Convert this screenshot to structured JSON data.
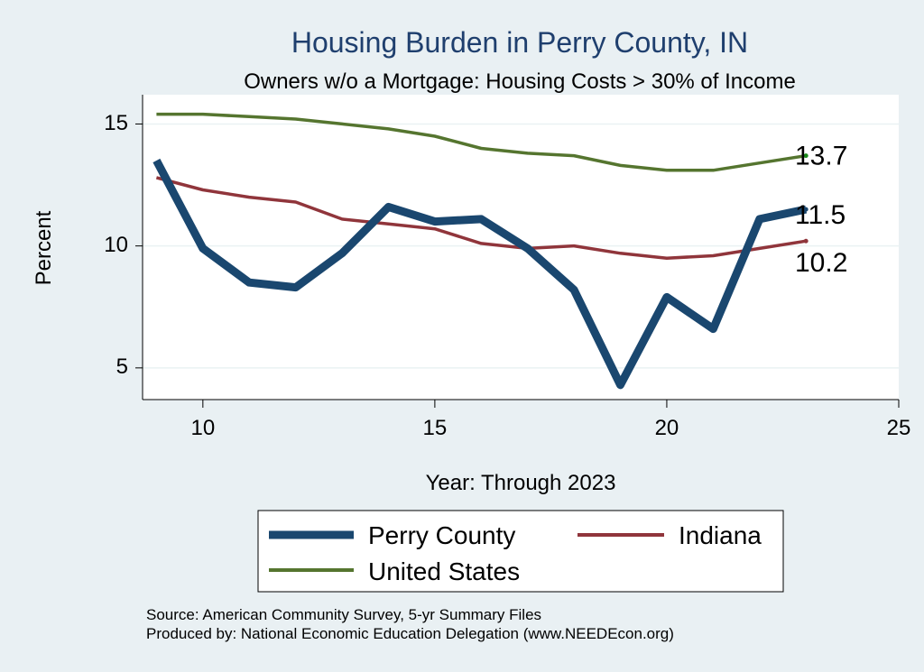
{
  "chart_data": {
    "type": "line",
    "title": "Housing Burden in Perry County, IN",
    "subtitle": "Owners w/o a Mortgage: Housing Costs > 30% of Income",
    "xlabel": "Year: Through 2023",
    "ylabel": "Percent",
    "xlim": [
      8.7,
      25
    ],
    "ylim": [
      3.7,
      16.2
    ],
    "xticks": [
      10,
      15,
      20,
      25
    ],
    "yticks": [
      5,
      10,
      15
    ],
    "grid": true,
    "x": [
      9,
      10,
      11,
      12,
      13,
      14,
      15,
      16,
      17,
      18,
      19,
      20,
      21,
      22,
      23
    ],
    "series": [
      {
        "name": "Perry County",
        "color": "#1a476f",
        "values": [
          13.5,
          9.9,
          8.5,
          8.3,
          9.7,
          11.6,
          11.0,
          11.1,
          9.9,
          8.2,
          4.3,
          7.9,
          6.6,
          11.1,
          11.5
        ],
        "end_label": "11.5"
      },
      {
        "name": "Indiana",
        "color": "#90353b",
        "values": [
          12.8,
          12.3,
          12.0,
          11.8,
          11.1,
          10.9,
          10.7,
          10.1,
          9.9,
          10.0,
          9.7,
          9.5,
          9.6,
          9.9,
          10.2
        ],
        "end_label": "10.2"
      },
      {
        "name": "United States",
        "color": "#55752f",
        "values": [
          15.4,
          15.4,
          15.3,
          15.2,
          15.0,
          14.8,
          14.5,
          14.0,
          13.8,
          13.7,
          13.3,
          13.1,
          13.1,
          13.4,
          13.7
        ],
        "end_label": "13.7"
      }
    ],
    "legend": {
      "position": "bottom",
      "items": [
        "Perry County",
        "Indiana",
        "United States"
      ]
    },
    "notes": [
      "Source: American Community Survey, 5-yr Summary Files",
      "Produced by: National Economic Education Delegation (www.NEEDEcon.org)"
    ]
  }
}
